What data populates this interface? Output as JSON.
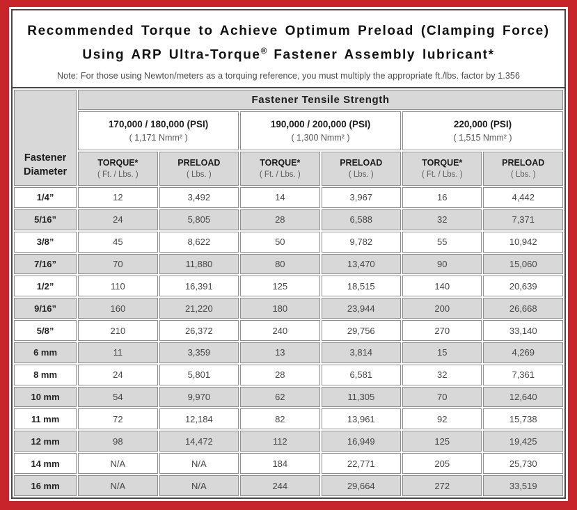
{
  "colors": {
    "frame_red": "#c8242b",
    "border_dark": "#474747",
    "cell_gray": "#d8d8d8",
    "cell_border": "#8d8d8d"
  },
  "title": {
    "line1": "Recommended Torque to Achieve Optimum Preload (Clamping Force)",
    "line2_pre": "Using ARP Ultra-Torque",
    "registered_mark": "®",
    "line2_post": " Fastener Assembly lubricant*"
  },
  "note": "Note: For those using Newton/meters as a torquing reference, you must multiply the appropriate ft./lbs. factor by 1.356",
  "table": {
    "main_header": "Fastener Tensile Strength",
    "row_header_line1": "Fastener",
    "row_header_line2": "Diameter",
    "strength_groups": [
      {
        "psi": "170,000 / 180,000 (PSI)",
        "nmm": "( 1,171 Nmm² )"
      },
      {
        "psi": "190,000 / 200,000 (PSI)",
        "nmm": "( 1,300 Nmm² )"
      },
      {
        "psi": "220,000 (PSI)",
        "nmm": "( 1,515 Nmm² )"
      }
    ],
    "sub_headers": {
      "torque_label": "TORQUE*",
      "torque_unit": "( Ft. / Lbs. )",
      "preload_label": "PRELOAD",
      "preload_unit": "( Lbs. )"
    },
    "rows": [
      {
        "diameter": "1/4”",
        "values": [
          "12",
          "3,492",
          "14",
          "3,967",
          "16",
          "4,442"
        ]
      },
      {
        "diameter": "5/16”",
        "values": [
          "24",
          "5,805",
          "28",
          "6,588",
          "32",
          "7,371"
        ]
      },
      {
        "diameter": "3/8”",
        "values": [
          "45",
          "8,622",
          "50",
          "9,782",
          "55",
          "10,942"
        ]
      },
      {
        "diameter": "7/16”",
        "values": [
          "70",
          "11,880",
          "80",
          "13,470",
          "90",
          "15,060"
        ]
      },
      {
        "diameter": "1/2”",
        "values": [
          "110",
          "16,391",
          "125",
          "18,515",
          "140",
          "20,639"
        ]
      },
      {
        "diameter": "9/16”",
        "values": [
          "160",
          "21,220",
          "180",
          "23,944",
          "200",
          "26,668"
        ]
      },
      {
        "diameter": "5/8”",
        "values": [
          "210",
          "26,372",
          "240",
          "29,756",
          "270",
          "33,140"
        ]
      },
      {
        "diameter": "6 mm",
        "values": [
          "11",
          "3,359",
          "13",
          "3,814",
          "15",
          "4,269"
        ]
      },
      {
        "diameter": "8 mm",
        "values": [
          "24",
          "5,801",
          "28",
          "6,581",
          "32",
          "7,361"
        ]
      },
      {
        "diameter": "10 mm",
        "values": [
          "54",
          "9,970",
          "62",
          "11,305",
          "70",
          "12,640"
        ]
      },
      {
        "diameter": "11 mm",
        "values": [
          "72",
          "12,184",
          "82",
          "13,961",
          "92",
          "15,738"
        ]
      },
      {
        "diameter": "12 mm",
        "values": [
          "98",
          "14,472",
          "112",
          "16,949",
          "125",
          "19,425"
        ]
      },
      {
        "diameter": "14 mm",
        "values": [
          "N/A",
          "N/A",
          "184",
          "22,771",
          "205",
          "25,730"
        ]
      },
      {
        "diameter": "16 mm",
        "values": [
          "N/A",
          "N/A",
          "244",
          "29,664",
          "272",
          "33,519"
        ]
      }
    ]
  }
}
